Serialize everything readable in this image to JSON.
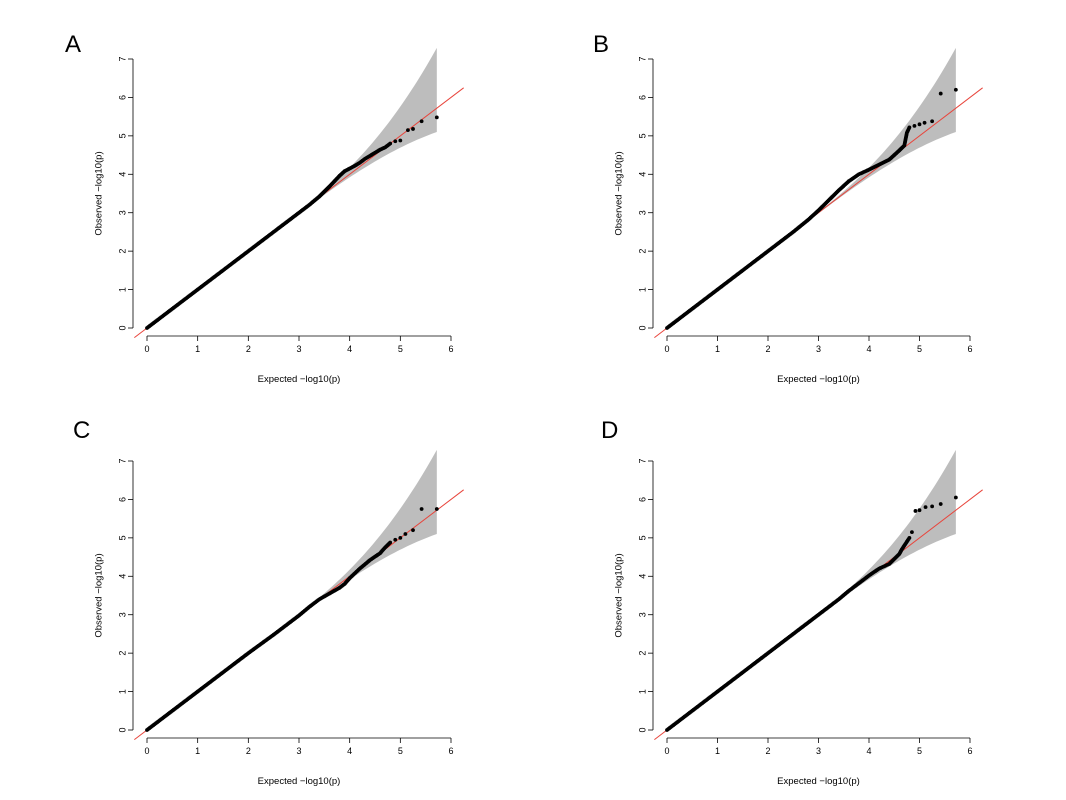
{
  "chart_data": [
    {
      "type": "scatter",
      "panel": "A",
      "xlabel": "Expected −log10(p)",
      "ylabel": "Observed −log10(p)",
      "xlim": [
        0,
        6
      ],
      "ylim": [
        0,
        7
      ],
      "xticks": [
        0,
        1,
        2,
        3,
        4,
        5,
        6
      ],
      "yticks": [
        0,
        1,
        2,
        3,
        4,
        5,
        6,
        7
      ],
      "grid": false,
      "reference_line": "y = x",
      "confidence_band": true,
      "series": [
        {
          "x": [
            0,
            0.5,
            1,
            1.5,
            2,
            2.5,
            3,
            3.2,
            3.4,
            3.5,
            3.6,
            3.7,
            3.8,
            3.9,
            4.0,
            4.1,
            4.2,
            4.3,
            4.4,
            4.5,
            4.6,
            4.7,
            4.8,
            4.9,
            5.0,
            5.15,
            5.25,
            5.42,
            5.72
          ],
          "y": [
            0,
            0.5,
            1,
            1.5,
            2,
            2.5,
            3,
            3.2,
            3.42,
            3.55,
            3.68,
            3.82,
            3.96,
            4.08,
            4.15,
            4.22,
            4.3,
            4.4,
            4.48,
            4.56,
            4.64,
            4.7,
            4.8,
            4.86,
            4.88,
            5.15,
            5.18,
            5.38,
            5.48
          ]
        }
      ]
    },
    {
      "type": "scatter",
      "panel": "B",
      "xlabel": "Expected −log10(p)",
      "ylabel": "Observed −log10(p)",
      "xlim": [
        0,
        6
      ],
      "ylim": [
        0,
        7
      ],
      "xticks": [
        0,
        1,
        2,
        3,
        4,
        5,
        6
      ],
      "yticks": [
        0,
        1,
        2,
        3,
        4,
        5,
        6,
        7
      ],
      "grid": false,
      "reference_line": "y = x",
      "confidence_band": true,
      "series": [
        {
          "x": [
            0,
            0.5,
            1,
            1.5,
            2,
            2.5,
            2.8,
            3.0,
            3.2,
            3.4,
            3.6,
            3.8,
            4.0,
            4.2,
            4.4,
            4.5,
            4.6,
            4.7,
            4.75,
            4.8,
            4.9,
            5.0,
            5.1,
            5.25,
            5.42,
            5.72
          ],
          "y": [
            0,
            0.5,
            1,
            1.5,
            2,
            2.5,
            2.82,
            3.06,
            3.32,
            3.58,
            3.82,
            4.0,
            4.12,
            4.25,
            4.38,
            4.5,
            4.62,
            4.75,
            5.08,
            5.22,
            5.26,
            5.3,
            5.34,
            5.38,
            6.1,
            6.2
          ]
        }
      ]
    },
    {
      "type": "scatter",
      "panel": "C",
      "xlabel": "Expected −log10(p)",
      "ylabel": "Observed −log10(p)",
      "xlim": [
        0,
        6
      ],
      "ylim": [
        0,
        7
      ],
      "xticks": [
        0,
        1,
        2,
        3,
        4,
        5,
        6
      ],
      "yticks": [
        0,
        1,
        2,
        3,
        4,
        5,
        6,
        7
      ],
      "grid": false,
      "reference_line": "y = x",
      "confidence_band": true,
      "series": [
        {
          "x": [
            0,
            0.5,
            1,
            1.5,
            2,
            2.5,
            3.0,
            3.2,
            3.4,
            3.6,
            3.8,
            3.9,
            4.0,
            4.2,
            4.4,
            4.6,
            4.7,
            4.8,
            4.9,
            5.0,
            5.1,
            5.25,
            5.42,
            5.72
          ],
          "y": [
            0,
            0.5,
            1,
            1.5,
            2,
            2.48,
            2.98,
            3.2,
            3.4,
            3.55,
            3.7,
            3.8,
            3.95,
            4.2,
            4.42,
            4.6,
            4.75,
            4.88,
            4.95,
            5.0,
            5.1,
            5.2,
            5.75,
            5.75
          ]
        }
      ]
    },
    {
      "type": "scatter",
      "panel": "D",
      "xlabel": "Expected −log10(p)",
      "ylabel": "Observed −log10(p)",
      "xlim": [
        0,
        6
      ],
      "ylim": [
        0,
        7
      ],
      "xticks": [
        0,
        1,
        2,
        3,
        4,
        5,
        6
      ],
      "yticks": [
        0,
        1,
        2,
        3,
        4,
        5,
        6,
        7
      ],
      "grid": false,
      "reference_line": "y = x",
      "confidence_band": true,
      "series": [
        {
          "x": [
            0,
            0.5,
            1,
            1.5,
            2,
            2.5,
            3.0,
            3.2,
            3.4,
            3.6,
            3.8,
            4.0,
            4.2,
            4.4,
            4.5,
            4.6,
            4.65,
            4.7,
            4.75,
            4.8,
            4.85,
            4.92,
            5.0,
            5.12,
            5.25,
            5.42,
            5.72
          ],
          "y": [
            0,
            0.5,
            1,
            1.5,
            2,
            2.5,
            3.0,
            3.2,
            3.4,
            3.62,
            3.82,
            4.02,
            4.2,
            4.32,
            4.45,
            4.58,
            4.7,
            4.8,
            4.9,
            5.0,
            5.15,
            5.7,
            5.72,
            5.8,
            5.82,
            5.88,
            6.05
          ]
        }
      ]
    }
  ]
}
